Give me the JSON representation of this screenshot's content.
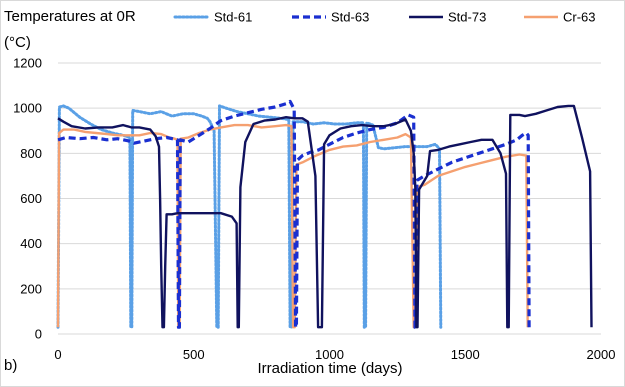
{
  "chart_data": {
    "type": "line",
    "panel_label": "b)",
    "ylabel_line1": "Temperatures at 0R",
    "ylabel_line2": "(°C)",
    "xlabel": "Irradiation time (days)",
    "xlim": [
      0,
      2000
    ],
    "ylim": [
      0,
      1200
    ],
    "x_ticks": [
      "0",
      "500",
      "1000",
      "1500",
      "2000"
    ],
    "y_ticks": [
      "0",
      "200",
      "400",
      "600",
      "800",
      "1000",
      "1200"
    ],
    "grid": "horizontal",
    "legend_position": "top",
    "series": [
      {
        "name": "Std-61",
        "color": "#5aa0e6",
        "dash": "dotted",
        "points": [
          [
            0,
            30
          ],
          [
            5,
            1005
          ],
          [
            20,
            1010
          ],
          [
            40,
            1000
          ],
          [
            80,
            960
          ],
          [
            120,
            930
          ],
          [
            160,
            905
          ],
          [
            200,
            890
          ],
          [
            240,
            880
          ],
          [
            265,
            870
          ],
          [
            268,
            30
          ],
          [
            272,
            30
          ],
          [
            275,
            990
          ],
          [
            300,
            985
          ],
          [
            340,
            975
          ],
          [
            380,
            985
          ],
          [
            420,
            965
          ],
          [
            460,
            975
          ],
          [
            500,
            975
          ],
          [
            530,
            965
          ],
          [
            550,
            955
          ],
          [
            560,
            940
          ],
          [
            575,
            900
          ],
          [
            585,
            30
          ],
          [
            590,
            30
          ],
          [
            595,
            1010
          ],
          [
            620,
            1000
          ],
          [
            660,
            985
          ],
          [
            700,
            975
          ],
          [
            740,
            965
          ],
          [
            780,
            960
          ],
          [
            820,
            955
          ],
          [
            850,
            950
          ],
          [
            855,
            30
          ],
          [
            860,
            30
          ],
          [
            866,
            940
          ],
          [
            900,
            940
          ],
          [
            940,
            930
          ],
          [
            980,
            935
          ],
          [
            1020,
            930
          ],
          [
            1060,
            930
          ],
          [
            1100,
            935
          ],
          [
            1125,
            935
          ],
          [
            1128,
            30
          ],
          [
            1133,
            30
          ],
          [
            1137,
            935
          ],
          [
            1160,
            925
          ],
          [
            1180,
            825
          ],
          [
            1200,
            820
          ],
          [
            1240,
            825
          ],
          [
            1280,
            830
          ],
          [
            1320,
            830
          ],
          [
            1360,
            830
          ],
          [
            1390,
            840
          ],
          [
            1405,
            820
          ],
          [
            1410,
            30
          ]
        ]
      },
      {
        "name": "Std-63",
        "color": "#1a2fd0",
        "dash": "dashed",
        "points": [
          [
            0,
            860
          ],
          [
            30,
            870
          ],
          [
            80,
            865
          ],
          [
            130,
            870
          ],
          [
            180,
            860
          ],
          [
            220,
            865
          ],
          [
            260,
            855
          ],
          [
            280,
            845
          ],
          [
            320,
            855
          ],
          [
            360,
            865
          ],
          [
            400,
            870
          ],
          [
            440,
            860
          ],
          [
            444,
            30
          ],
          [
            447,
            30
          ],
          [
            450,
            860
          ],
          [
            480,
            850
          ],
          [
            520,
            880
          ],
          [
            560,
            910
          ],
          [
            600,
            945
          ],
          [
            650,
            965
          ],
          [
            700,
            980
          ],
          [
            750,
            995
          ],
          [
            800,
            1005
          ],
          [
            840,
            1020
          ],
          [
            855,
            1030
          ],
          [
            870,
            995
          ],
          [
            875,
            30
          ],
          [
            878,
            30
          ],
          [
            882,
            770
          ],
          [
            900,
            790
          ],
          [
            930,
            805
          ],
          [
            960,
            815
          ],
          [
            1000,
            840
          ],
          [
            1050,
            870
          ],
          [
            1100,
            890
          ],
          [
            1150,
            905
          ],
          [
            1200,
            915
          ],
          [
            1250,
            935
          ],
          [
            1290,
            970
          ],
          [
            1310,
            960
          ],
          [
            1315,
            30
          ],
          [
            1318,
            30
          ],
          [
            1322,
            680
          ],
          [
            1350,
            700
          ],
          [
            1400,
            730
          ],
          [
            1450,
            760
          ],
          [
            1500,
            780
          ],
          [
            1550,
            800
          ],
          [
            1600,
            820
          ],
          [
            1650,
            840
          ],
          [
            1690,
            860
          ],
          [
            1710,
            880
          ],
          [
            1725,
            890
          ],
          [
            1732,
            880
          ],
          [
            1735,
            30
          ]
        ]
      },
      {
        "name": "Std-73",
        "color": "#10125e",
        "dash": "solid",
        "points": [
          [
            0,
            955
          ],
          [
            20,
            940
          ],
          [
            50,
            920
          ],
          [
            100,
            910
          ],
          [
            150,
            915
          ],
          [
            200,
            915
          ],
          [
            240,
            925
          ],
          [
            270,
            915
          ],
          [
            300,
            915
          ],
          [
            340,
            905
          ],
          [
            360,
            875
          ],
          [
            372,
            830
          ],
          [
            376,
            600
          ],
          [
            380,
            300
          ],
          [
            385,
            30
          ],
          [
            390,
            30
          ],
          [
            395,
            300
          ],
          [
            400,
            530
          ],
          [
            420,
            530
          ],
          [
            440,
            535
          ],
          [
            500,
            535
          ],
          [
            560,
            535
          ],
          [
            600,
            535
          ],
          [
            640,
            520
          ],
          [
            658,
            490
          ],
          [
            662,
            30
          ],
          [
            666,
            30
          ],
          [
            672,
            650
          ],
          [
            690,
            850
          ],
          [
            720,
            930
          ],
          [
            760,
            945
          ],
          [
            800,
            950
          ],
          [
            840,
            960
          ],
          [
            870,
            955
          ],
          [
            900,
            955
          ],
          [
            920,
            940
          ],
          [
            948,
            700
          ],
          [
            958,
            30
          ],
          [
            972,
            30
          ],
          [
            980,
            840
          ],
          [
            1000,
            880
          ],
          [
            1040,
            910
          ],
          [
            1080,
            920
          ],
          [
            1120,
            925
          ],
          [
            1160,
            920
          ],
          [
            1200,
            920
          ],
          [
            1240,
            930
          ],
          [
            1280,
            950
          ],
          [
            1300,
            900
          ],
          [
            1310,
            800
          ],
          [
            1316,
            650
          ],
          [
            1320,
            30
          ],
          [
            1324,
            30
          ],
          [
            1330,
            640
          ],
          [
            1360,
            700
          ],
          [
            1370,
            810
          ],
          [
            1400,
            815
          ],
          [
            1440,
            830
          ],
          [
            1480,
            840
          ],
          [
            1520,
            850
          ],
          [
            1560,
            860
          ],
          [
            1600,
            860
          ],
          [
            1630,
            800
          ],
          [
            1650,
            710
          ],
          [
            1655,
            30
          ],
          [
            1660,
            30
          ],
          [
            1666,
            970
          ],
          [
            1700,
            970
          ],
          [
            1720,
            965
          ],
          [
            1760,
            975
          ],
          [
            1800,
            990
          ],
          [
            1840,
            1005
          ],
          [
            1880,
            1010
          ],
          [
            1900,
            1010
          ],
          [
            1930,
            870
          ],
          [
            1960,
            720
          ],
          [
            1965,
            30
          ]
        ]
      },
      {
        "name": "Cr-63",
        "color": "#f5a070",
        "dash": "solid",
        "points": [
          [
            0,
            30
          ],
          [
            4,
            890
          ],
          [
            20,
            905
          ],
          [
            60,
            905
          ],
          [
            100,
            895
          ],
          [
            140,
            890
          ],
          [
            180,
            885
          ],
          [
            220,
            880
          ],
          [
            260,
            880
          ],
          [
            300,
            880
          ],
          [
            340,
            890
          ],
          [
            380,
            885
          ],
          [
            410,
            870
          ],
          [
            430,
            865
          ],
          [
            440,
            860
          ],
          [
            443,
            30
          ],
          [
            448,
            30
          ],
          [
            452,
            865
          ],
          [
            480,
            870
          ],
          [
            520,
            890
          ],
          [
            560,
            905
          ],
          [
            600,
            915
          ],
          [
            650,
            925
          ],
          [
            700,
            925
          ],
          [
            750,
            915
          ],
          [
            800,
            920
          ],
          [
            840,
            925
          ],
          [
            860,
            920
          ],
          [
            866,
            30
          ],
          [
            872,
            30
          ],
          [
            878,
            750
          ],
          [
            900,
            760
          ],
          [
            950,
            790
          ],
          [
            1000,
            815
          ],
          [
            1050,
            830
          ],
          [
            1100,
            835
          ],
          [
            1150,
            850
          ],
          [
            1200,
            860
          ],
          [
            1250,
            870
          ],
          [
            1280,
            885
          ],
          [
            1300,
            870
          ],
          [
            1310,
            30
          ],
          [
            1316,
            30
          ],
          [
            1322,
            650
          ],
          [
            1350,
            660
          ],
          [
            1400,
            700
          ],
          [
            1450,
            720
          ],
          [
            1500,
            740
          ],
          [
            1550,
            755
          ],
          [
            1600,
            770
          ],
          [
            1650,
            785
          ],
          [
            1700,
            795
          ],
          [
            1725,
            790
          ],
          [
            1730,
            30
          ]
        ]
      }
    ]
  }
}
